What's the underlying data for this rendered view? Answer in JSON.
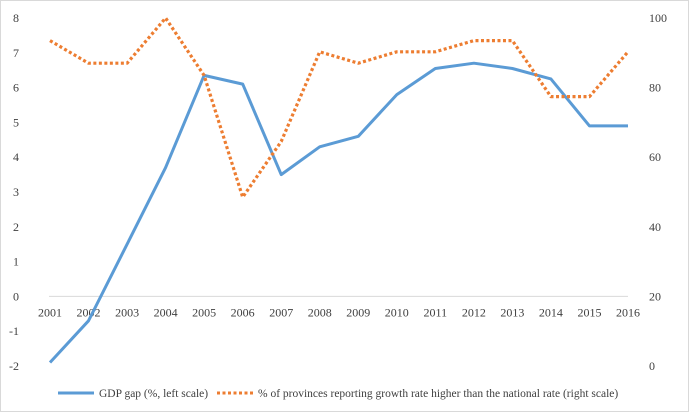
{
  "chart_data": {
    "type": "line",
    "title": "",
    "xlabel": "",
    "ylabel": "",
    "y2label": "",
    "categories": [
      "2001",
      "2002",
      "2003",
      "2004",
      "2005",
      "2006",
      "2007",
      "2008",
      "2009",
      "2010",
      "2011",
      "2012",
      "2013",
      "2014",
      "2015",
      "2016"
    ],
    "y_left": {
      "min": -2,
      "max": 8,
      "ticks": [
        -2,
        -1,
        0,
        1,
        2,
        3,
        4,
        5,
        6,
        7,
        8
      ],
      "tick_labels": [
        "-2",
        "-1",
        "0",
        "1",
        "2",
        "3",
        "4",
        "5",
        "6",
        "7",
        "8"
      ]
    },
    "y_right": {
      "min": 0,
      "max": 100,
      "ticks": [
        0,
        20,
        40,
        60,
        80,
        100
      ],
      "tick_labels": [
        "0",
        "20",
        "40",
        "60",
        "80",
        "100"
      ]
    },
    "x_tick_row_at_left_value": 0,
    "gridlines": false,
    "legend_position": "bottom",
    "series": [
      {
        "name": "GDP gap (%, left scale)",
        "axis": "left",
        "style": "solid",
        "color": "#5b9bd5",
        "values": [
          -1.9,
          -0.7,
          1.5,
          3.7,
          6.35,
          6.1,
          3.5,
          4.3,
          4.6,
          5.8,
          6.55,
          6.7,
          6.55,
          6.25,
          4.9,
          4.9
        ]
      },
      {
        "name": "% of provinces reporting growth rate higher than the national rate (right scale)",
        "axis": "right",
        "style": "dotted",
        "color": "#ed7d31",
        "values": [
          93.5,
          87,
          87,
          100,
          83.5,
          48.5,
          64.5,
          90.3,
          87,
          90.3,
          90.3,
          93.5,
          93.5,
          77.4,
          77.4,
          90.3
        ]
      }
    ]
  }
}
